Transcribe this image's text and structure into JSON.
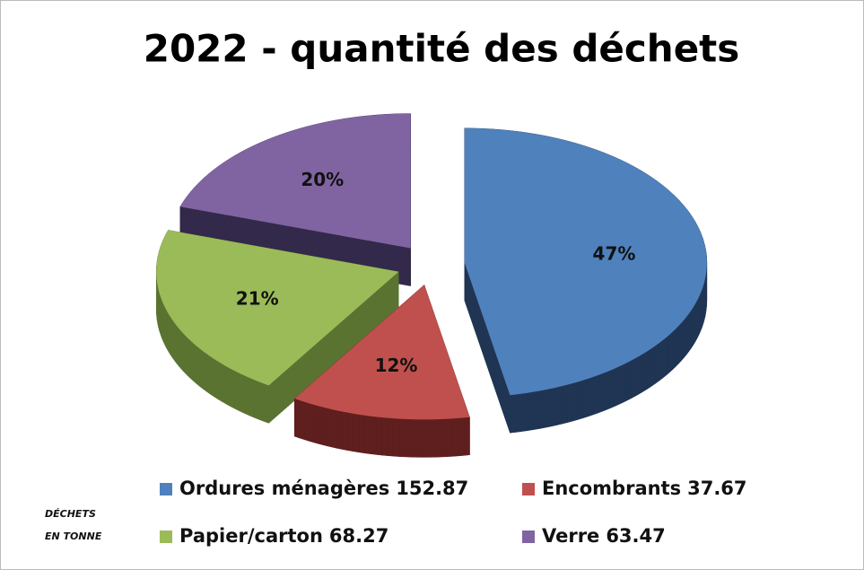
{
  "chart_data": {
    "type": "pie",
    "title": "2022 - quantité des déchets",
    "categories": [
      "Ordures ménagères",
      "Encombrants",
      "Papier/carton",
      "Verre"
    ],
    "values": [
      47,
      12,
      21,
      20
    ],
    "value_labels": [
      "47%",
      "12%",
      "21%",
      "20%"
    ],
    "amounts": [
      152.87,
      37.67,
      68.27,
      63.47
    ],
    "colors": [
      "#4f81bd",
      "#c0504d",
      "#9bbb59",
      "#8064a2"
    ],
    "side_colors": [
      "#1f3553",
      "#5e1f1e",
      "#5b7331",
      "#33294a"
    ],
    "annotation": [
      "DÉCHETS",
      "EN TONNE"
    ]
  }
}
